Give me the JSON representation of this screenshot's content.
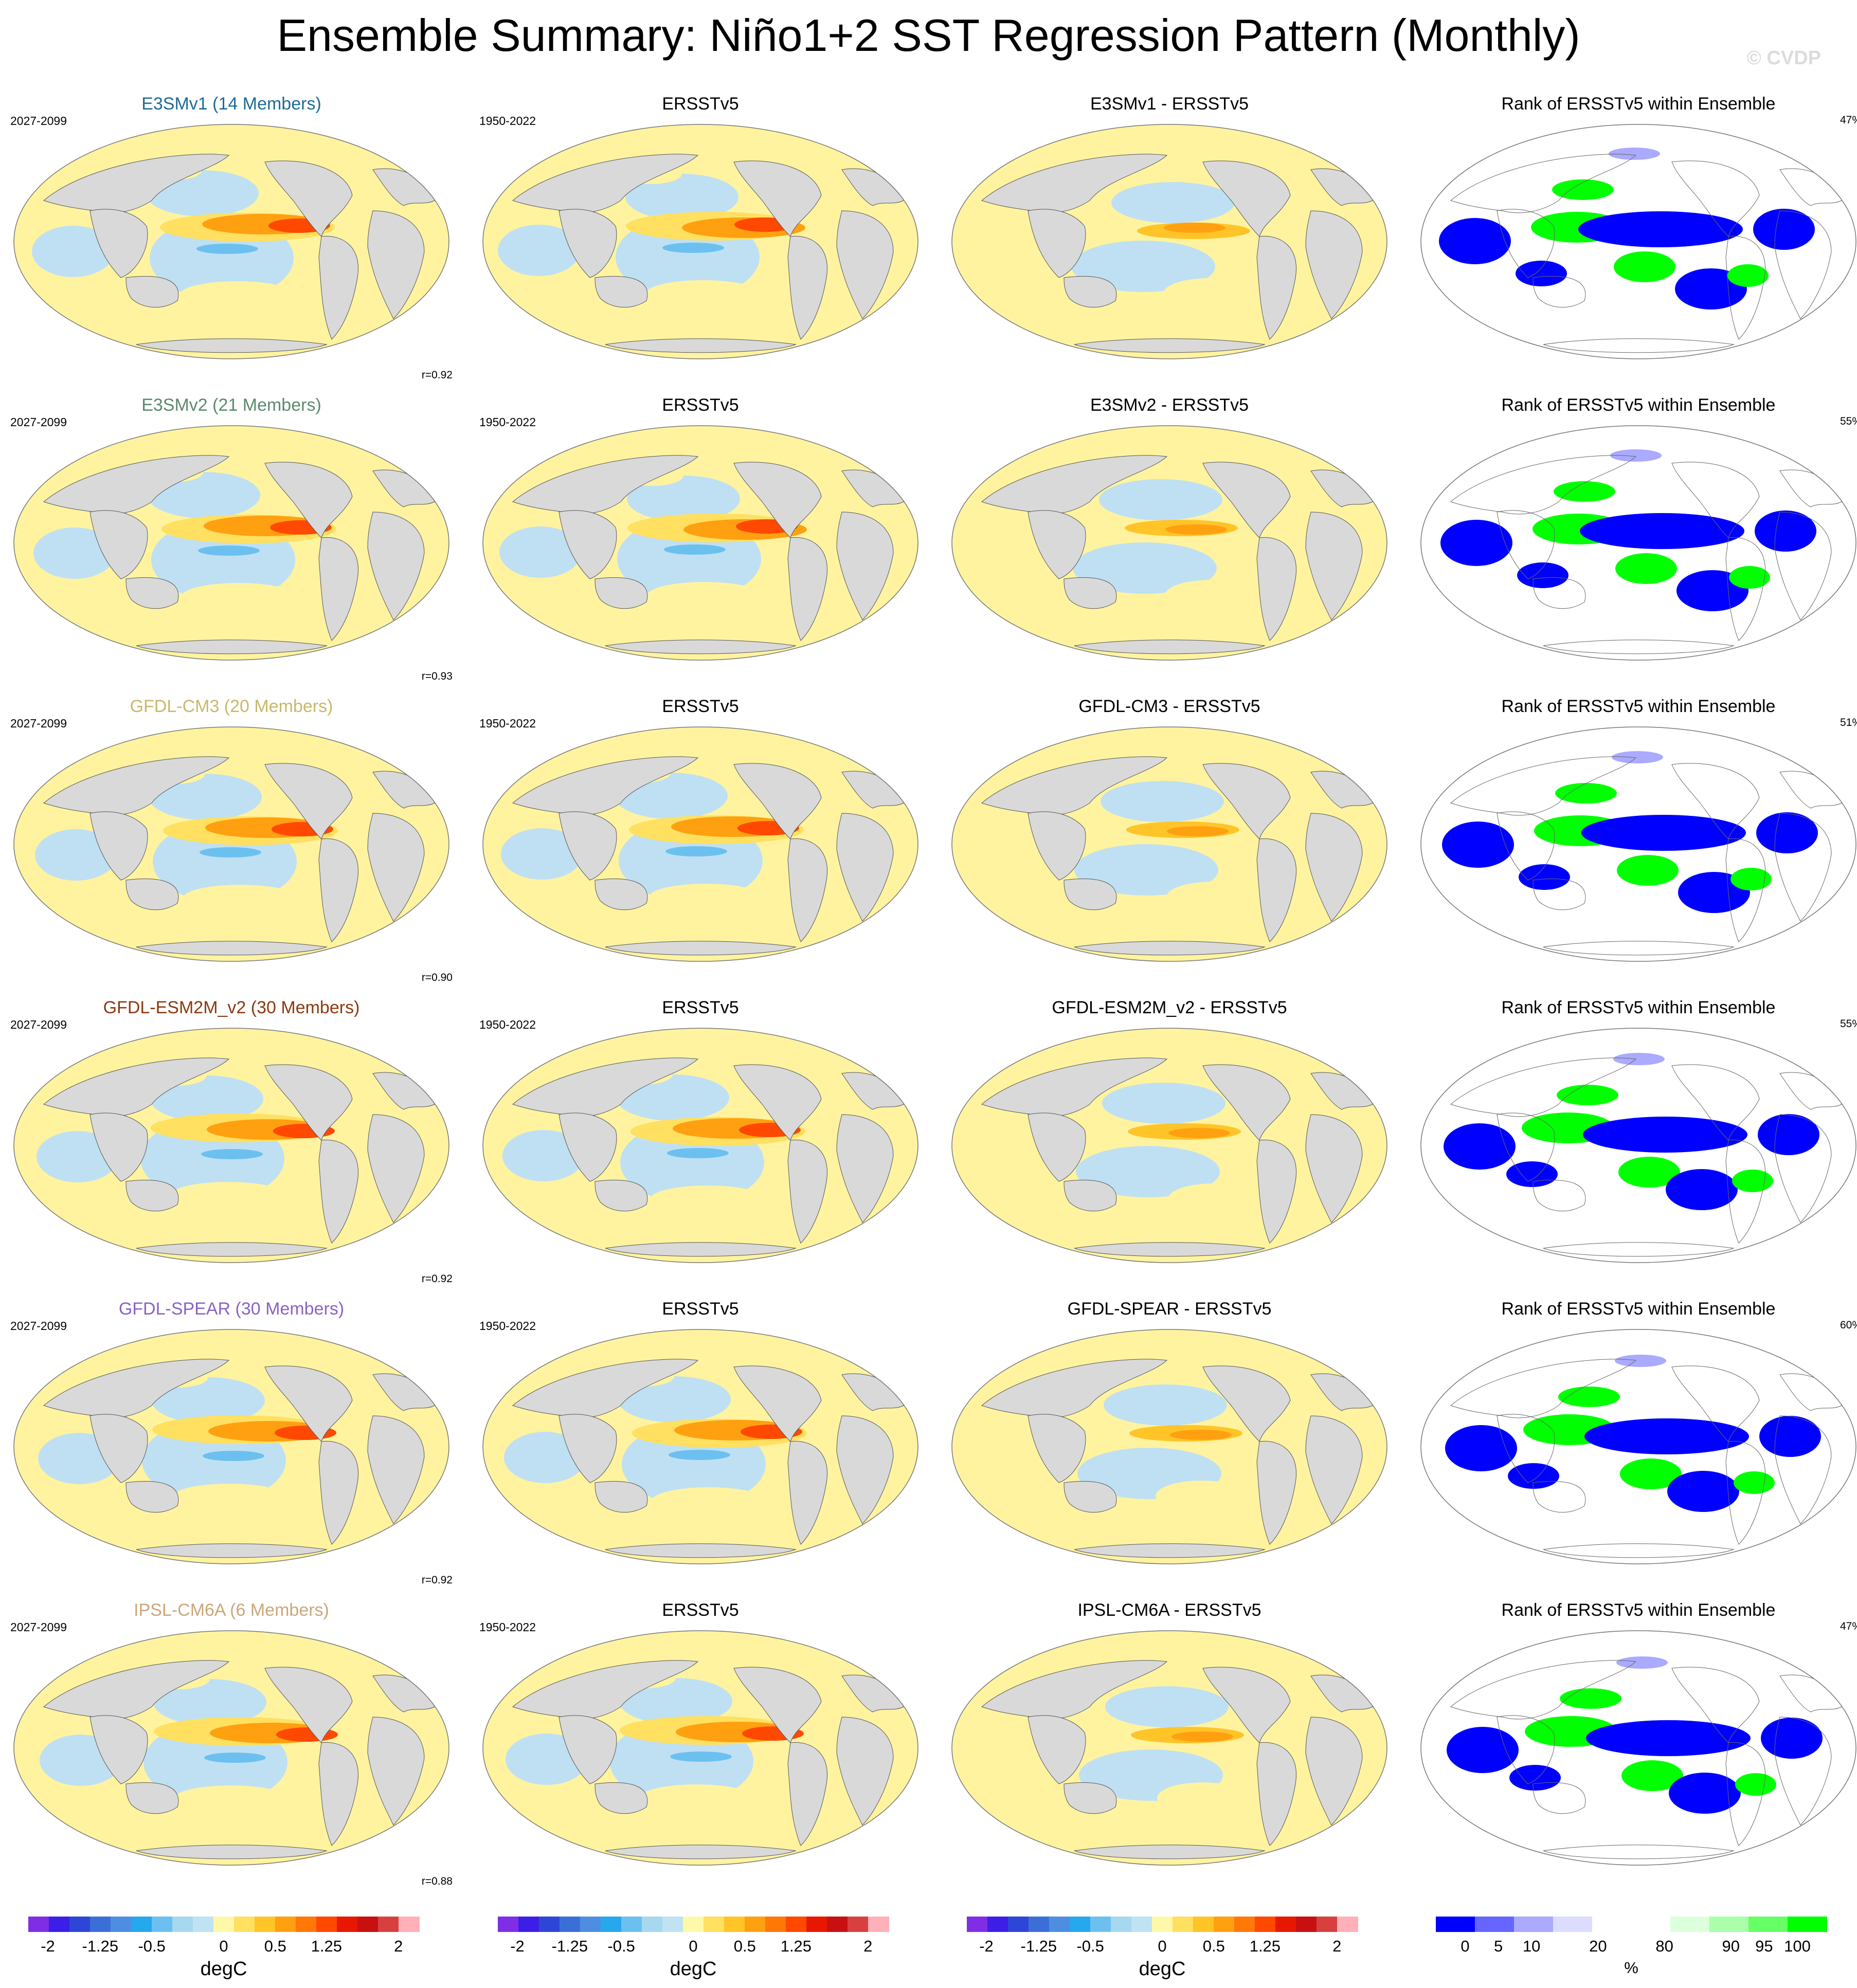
{
  "figure": {
    "title": "Ensemble Summary: Niño1+2 SST Regression Pattern (Monthly)",
    "watermark": "© CVDP"
  },
  "rows": [
    {
      "model_title": "E3SMv1 (14 Members)",
      "model_title_color": "#1f6b96",
      "model_period": "2027-2099",
      "pattern_corr": "r=0.92",
      "obs_title": "ERSSTv5",
      "obs_period": "1950-2022",
      "diff_title": "E3SMv1 - ERSSTv5",
      "rank_title": "Rank of ERSSTv5 within Ensemble",
      "rank_pct": "47%"
    },
    {
      "model_title": "E3SMv2 (21 Members)",
      "model_title_color": "#5d8a6e",
      "model_period": "2027-2099",
      "pattern_corr": "r=0.93",
      "obs_title": "ERSSTv5",
      "obs_period": "1950-2022",
      "diff_title": "E3SMv2 - ERSSTv5",
      "rank_title": "Rank of ERSSTv5 within Ensemble",
      "rank_pct": "55%"
    },
    {
      "model_title": "GFDL-CM3 (20 Members)",
      "model_title_color": "#c9b86a",
      "model_period": "2027-2099",
      "pattern_corr": "r=0.90",
      "obs_title": "ERSSTv5",
      "obs_period": "1950-2022",
      "diff_title": "GFDL-CM3 - ERSSTv5",
      "rank_title": "Rank of ERSSTv5 within Ensemble",
      "rank_pct": "51%"
    },
    {
      "model_title": "GFDL-ESM2M_v2 (30 Members)",
      "model_title_color": "#8b3a10",
      "model_period": "2027-2099",
      "pattern_corr": "r=0.92",
      "obs_title": "ERSSTv5",
      "obs_period": "1950-2022",
      "diff_title": "GFDL-ESM2M_v2 - ERSSTv5",
      "rank_title": "Rank of ERSSTv5 within Ensemble",
      "rank_pct": "55%"
    },
    {
      "model_title": "GFDL-SPEAR (30 Members)",
      "model_title_color": "#8a63c4",
      "model_period": "2027-2099",
      "pattern_corr": "r=0.92",
      "obs_title": "ERSSTv5",
      "obs_period": "1950-2022",
      "diff_title": "GFDL-SPEAR - ERSSTv5",
      "rank_title": "Rank of ERSSTv5 within Ensemble",
      "rank_pct": "60%"
    },
    {
      "model_title": "IPSL-CM6A (6 Members)",
      "model_title_color": "#caa77a",
      "model_period": "2027-2099",
      "pattern_corr": "r=0.88",
      "obs_title": "ERSSTv5",
      "obs_period": "1950-2022",
      "diff_title": "IPSL-CM6A - ERSSTv5",
      "rank_title": "Rank of ERSSTv5 within Ensemble",
      "rank_pct": "47%"
    }
  ],
  "colorbars": {
    "sst": {
      "units": "degC",
      "colors": [
        "#7f2ee6",
        "#3c1ee6",
        "#2e46d8",
        "#3c6ed8",
        "#4e8ee0",
        "#25a8ec",
        "#6cc0f0",
        "#a6d8f0",
        "#bfe3f2",
        "#fff8a8",
        "#ffe060",
        "#ffc428",
        "#ffa010",
        "#ff7808",
        "#ff4800",
        "#e81800",
        "#c81010",
        "#d84040",
        "#ffb0b8"
      ],
      "labels": [
        {
          "text": "-2",
          "pos": 0.05
        },
        {
          "text": "-1.25",
          "pos": 0.184
        },
        {
          "text": "-0.5",
          "pos": 0.316
        },
        {
          "text": "0",
          "pos": 0.5
        },
        {
          "text": "0.5",
          "pos": 0.632
        },
        {
          "text": "1.25",
          "pos": 0.763
        },
        {
          "text": "2",
          "pos": 0.947
        }
      ]
    },
    "rank": {
      "units": "%",
      "colors": [
        "#0000ff",
        "#6666ff",
        "#aaaaff",
        "#dcdcff",
        "#ffffff",
        "#ffffff",
        "#dcffdc",
        "#aaffaa",
        "#66ff66",
        "#00ff00"
      ],
      "labels": [
        {
          "text": "0",
          "pos": 0.075
        },
        {
          "text": "5",
          "pos": 0.16
        },
        {
          "text": "10",
          "pos": 0.245
        },
        {
          "text": "20",
          "pos": 0.415
        },
        {
          "text": "%",
          "pos": 0.5
        },
        {
          "text": "80",
          "pos": 0.585
        },
        {
          "text": "90",
          "pos": 0.755
        },
        {
          "text": "95",
          "pos": 0.84
        },
        {
          "text": "100",
          "pos": 0.925
        }
      ]
    }
  },
  "palette": {
    "land": "#d9d9d9",
    "ocean_neutral": "#ffffff",
    "rank_low": "#0000ff",
    "rank_high": "#00ff00",
    "pos_light": "#fff3a0",
    "neg_light": "#bfe0f3"
  }
}
